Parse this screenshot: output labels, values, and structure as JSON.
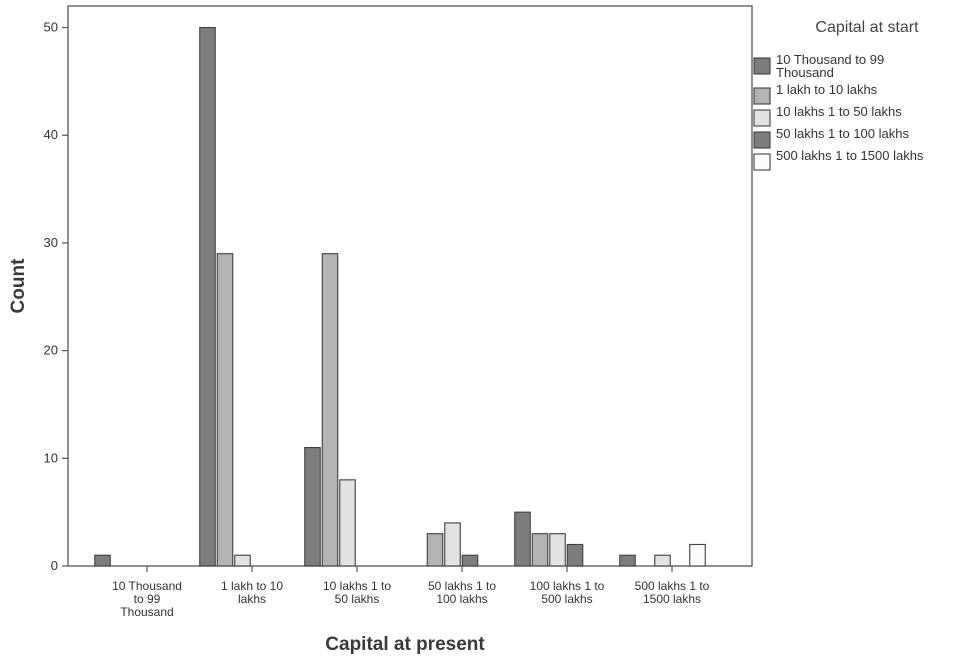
{
  "chart_data": {
    "type": "bar",
    "title": "",
    "xlabel": "Capital at present",
    "ylabel": "Count",
    "ylim": [
      0,
      52
    ],
    "yticks": [
      0,
      10,
      20,
      30,
      40,
      50
    ],
    "grid": false,
    "legend_placement": "right",
    "legend_title": "Capital at start",
    "categories": [
      [
        "10 Thousand",
        "to 99",
        "Thousand"
      ],
      [
        "1 lakh to 10",
        "lakhs"
      ],
      [
        "10 lakhs 1 to",
        "50 lakhs"
      ],
      [
        "50 lakhs 1 to",
        "100 lakhs"
      ],
      [
        "100 lakhs 1 to",
        "500 lakhs"
      ],
      [
        "500 lakhs 1 to",
        "1500 lakhs"
      ]
    ],
    "series": [
      {
        "name": [
          "10 Thousand to 99",
          "Thousand"
        ],
        "color": "#7d7d7d",
        "values": [
          1,
          50,
          11,
          0,
          5,
          1
        ]
      },
      {
        "name": [
          "1 lakh to 10 lakhs"
        ],
        "color": "#b3b3b3",
        "values": [
          0,
          29,
          29,
          3,
          3,
          0
        ]
      },
      {
        "name": [
          "10 lakhs 1 to 50 lakhs"
        ],
        "color": "#e2e2e2",
        "values": [
          0,
          1,
          8,
          4,
          3,
          1
        ]
      },
      {
        "name": [
          "50 lakhs 1 to 100 lakhs"
        ],
        "color": "#7d7d7d",
        "values": [
          0,
          0,
          0,
          1,
          2,
          0
        ]
      },
      {
        "name": [
          "500 lakhs 1 to 1500 lakhs"
        ],
        "color": "#fbfbfb",
        "values": [
          0,
          0,
          0,
          0,
          0,
          2
        ]
      }
    ]
  }
}
